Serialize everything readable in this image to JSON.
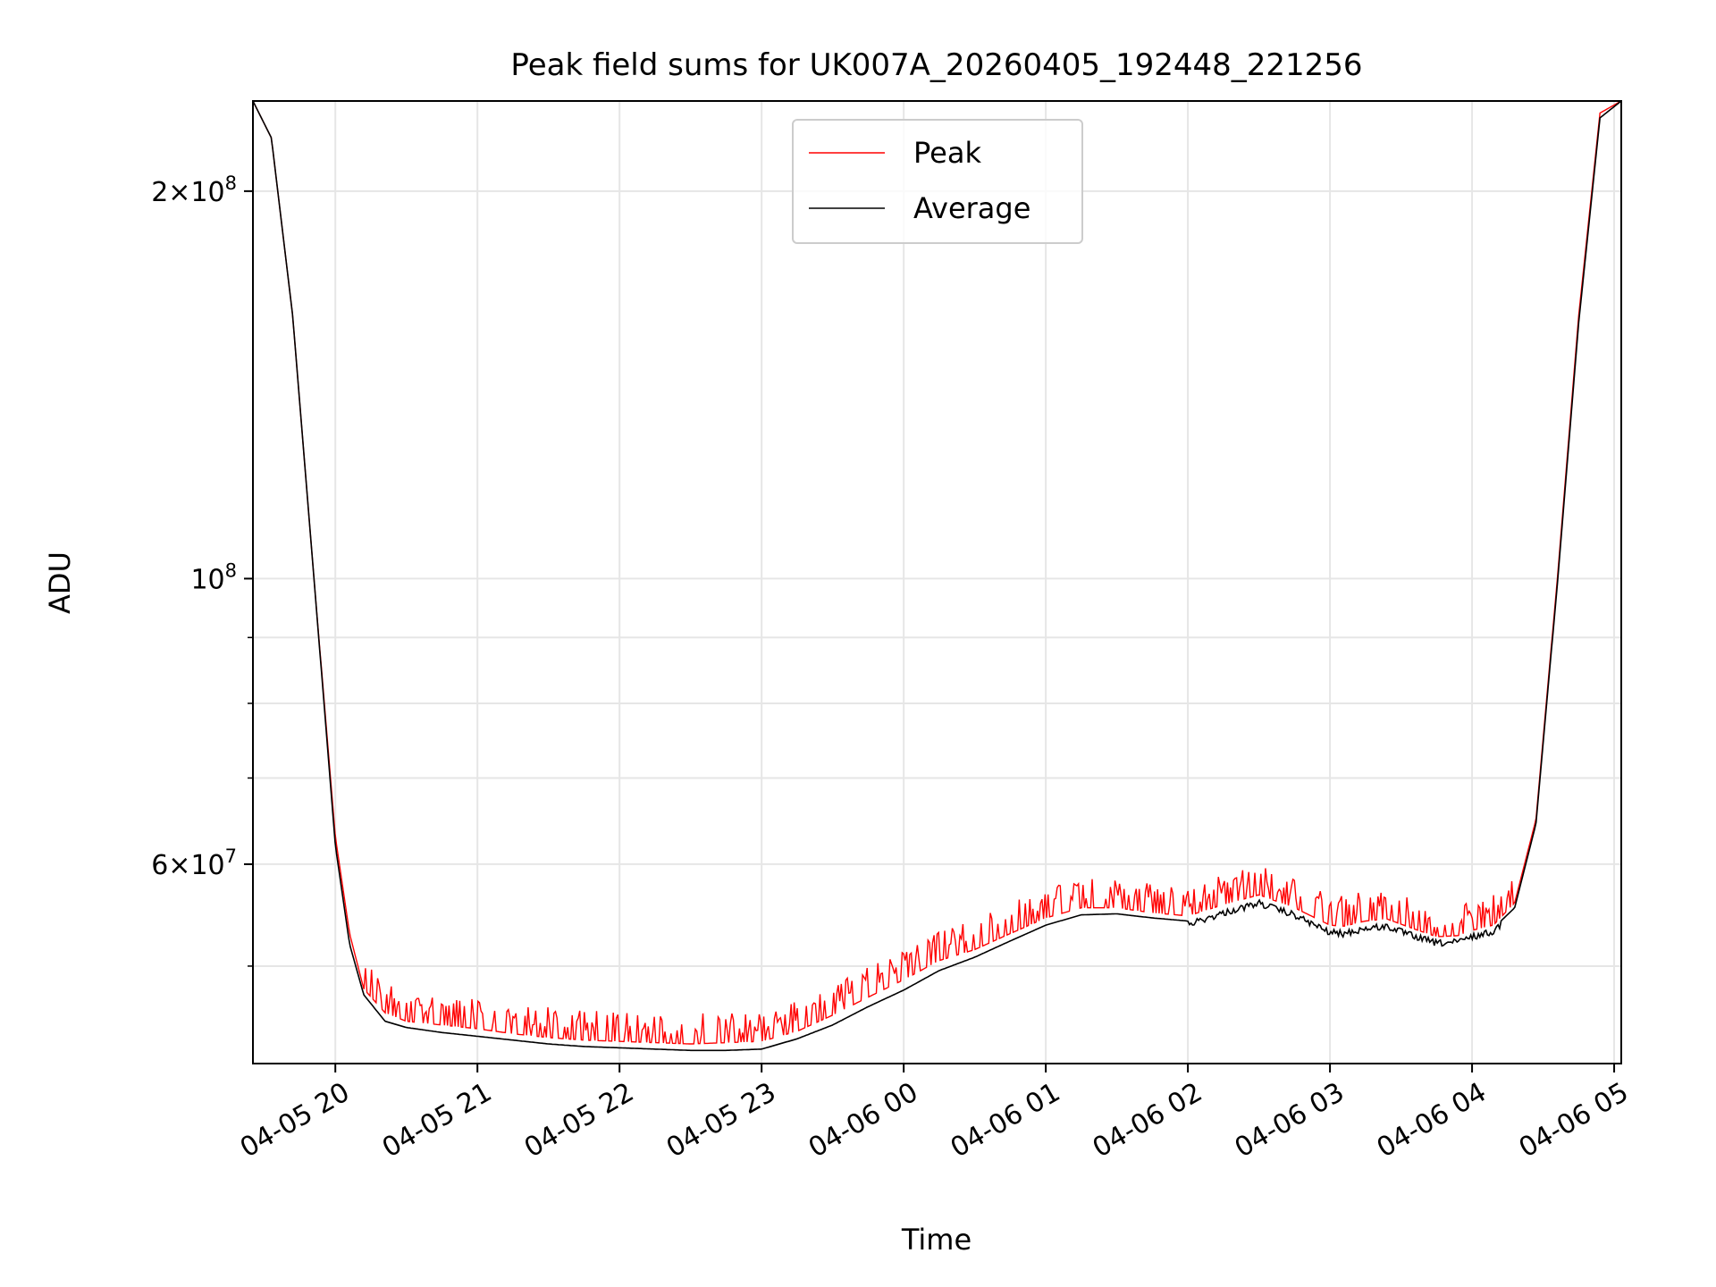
{
  "chart_data": {
    "type": "line",
    "title": "Peak field sums for UK007A_20260405_192448_221256",
    "xlabel": "Time",
    "ylabel": "ADU",
    "yscale": "log",
    "xlim_hours": [
      19.42,
      29.05
    ],
    "ylim": [
      42000000,
      235000000
    ],
    "grid": true,
    "legend_position": "upper-center",
    "x_ticks": [
      {
        "hour": 20,
        "label": "04-05 20"
      },
      {
        "hour": 21,
        "label": "04-05 21"
      },
      {
        "hour": 22,
        "label": "04-05 22"
      },
      {
        "hour": 23,
        "label": "04-05 23"
      },
      {
        "hour": 24,
        "label": "04-06 00"
      },
      {
        "hour": 25,
        "label": "04-06 01"
      },
      {
        "hour": 26,
        "label": "04-06 02"
      },
      {
        "hour": 27,
        "label": "04-06 03"
      },
      {
        "hour": 28,
        "label": "04-06 04"
      },
      {
        "hour": 29,
        "label": "04-06 05"
      }
    ],
    "y_major_ticks": [
      {
        "value": 100000000,
        "base": "10",
        "exp": "8",
        "coef": ""
      },
      {
        "value": 60000000,
        "base": "10",
        "exp": "7",
        "coef": "6"
      },
      {
        "value": 200000000,
        "base": "10",
        "exp": "8",
        "coef": "2"
      }
    ],
    "y_minor_ticks": [
      40000000,
      50000000,
      70000000,
      80000000,
      90000000,
      300000000
    ],
    "series": [
      {
        "name": "Peak",
        "color": "#ff0000",
        "hours": [
          19.42,
          19.55,
          19.7,
          19.85,
          20.0,
          20.1,
          20.2,
          20.35,
          20.5,
          20.75,
          21.0,
          21.25,
          21.5,
          21.75,
          22.0,
          22.25,
          22.5,
          22.75,
          23.0,
          23.25,
          23.5,
          23.75,
          24.0,
          24.25,
          24.5,
          24.75,
          25.0,
          25.25,
          25.5,
          25.75,
          26.0,
          26.25,
          26.5,
          26.75,
          27.0,
          27.1,
          27.25,
          27.4,
          27.6,
          27.75,
          27.9,
          28.0,
          28.15,
          28.3,
          28.45,
          28.6,
          28.75,
          28.9,
          29.05
        ],
        "values": [
          235000000,
          220000000,
          160000000,
          100000000,
          63000000,
          53000000,
          48000000,
          46000000,
          45300000,
          45000000,
          44700000,
          44300000,
          44000000,
          43800000,
          43700000,
          43600000,
          43500000,
          43600000,
          43700000,
          44500000,
          45800000,
          47300000,
          48800000,
          50500000,
          51500000,
          53000000,
          54500000,
          55500000,
          55500000,
          55000000,
          54700000,
          55800000,
          56800000,
          55500000,
          53800000,
          53700000,
          54200000,
          54400000,
          53400000,
          52700000,
          52800000,
          53300000,
          53800000,
          56000000,
          65000000,
          100000000,
          160000000,
          230000000,
          235000000
        ],
        "spike_range_hours": [
          20.2,
          28.3
        ],
        "spike_height_ratio": 1.04
      },
      {
        "name": "Average",
        "color": "#000000",
        "hours": [
          19.42,
          19.55,
          19.7,
          19.85,
          20.0,
          20.1,
          20.2,
          20.35,
          20.5,
          20.75,
          21.0,
          21.25,
          21.5,
          21.75,
          22.0,
          22.25,
          22.5,
          22.75,
          23.0,
          23.25,
          23.5,
          23.75,
          24.0,
          24.25,
          24.5,
          24.75,
          25.0,
          25.25,
          25.5,
          25.75,
          26.0,
          26.25,
          26.5,
          26.75,
          27.0,
          27.1,
          27.25,
          27.4,
          27.6,
          27.75,
          27.9,
          28.0,
          28.15,
          28.3,
          28.45,
          28.6,
          28.75,
          28.9,
          29.05
        ],
        "values": [
          235000000,
          220000000,
          160000000,
          100000000,
          62000000,
          52000000,
          47500000,
          45300000,
          44800000,
          44400000,
          44100000,
          43800000,
          43500000,
          43300000,
          43200000,
          43100000,
          43000000,
          43000000,
          43100000,
          43900000,
          45000000,
          46500000,
          47900000,
          49600000,
          50800000,
          52300000,
          53800000,
          54800000,
          54900000,
          54500000,
          54200000,
          55300000,
          56300000,
          55100000,
          53400000,
          53300000,
          53800000,
          54000000,
          53000000,
          52400000,
          52500000,
          53000000,
          53500000,
          55500000,
          64500000,
          99000000,
          158000000,
          228000000,
          235000000
        ]
      }
    ]
  }
}
